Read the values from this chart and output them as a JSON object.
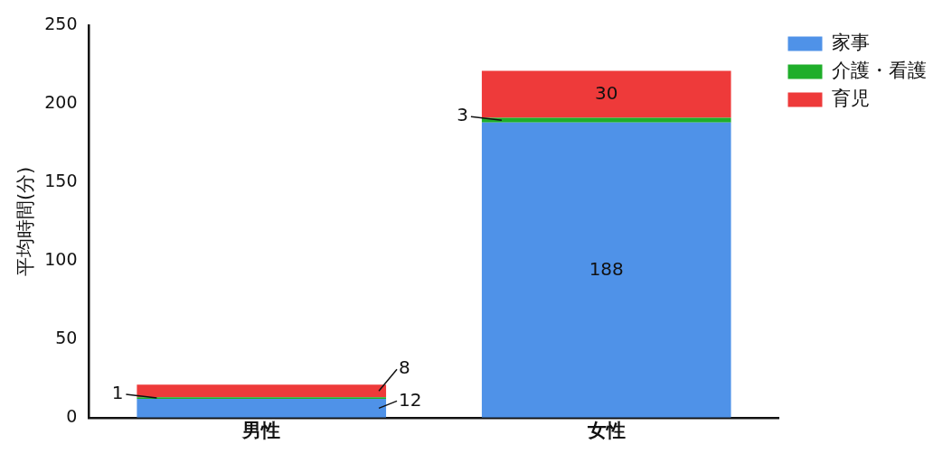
{
  "chart_data": {
    "type": "bar",
    "stacked": true,
    "ylabel": "平均時間(分)",
    "categories": [
      "男性",
      "女性"
    ],
    "series": [
      {
        "name": "家事",
        "color": "#4f92e8",
        "values": [
          12,
          188
        ]
      },
      {
        "name": "介護・看護",
        "color": "#1fae2a",
        "values": [
          1,
          3
        ]
      },
      {
        "name": "育児",
        "color": "#ee3a3a",
        "values": [
          8,
          30
        ]
      }
    ],
    "ylim": [
      0,
      250
    ],
    "yticks": [
      0,
      50,
      100,
      150,
      200,
      250
    ],
    "grid": false,
    "legend": "top right",
    "data_labels": true
  }
}
